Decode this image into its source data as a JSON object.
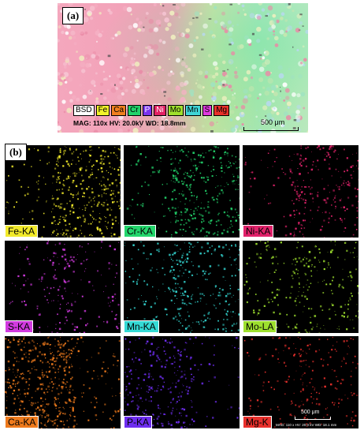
{
  "panel_a": {
    "label": "(a)",
    "legend": [
      {
        "text": "BSD",
        "bg": "#ffffff",
        "fg": "#000000"
      },
      {
        "text": "Fe",
        "bg": "#f2f22a",
        "fg": "#000000"
      },
      {
        "text": "Ca",
        "bg": "#f07f1e",
        "fg": "#000000"
      },
      {
        "text": "Cr",
        "bg": "#21d36a",
        "fg": "#000000"
      },
      {
        "text": "P",
        "bg": "#7a32f0",
        "fg": "#ffffff"
      },
      {
        "text": "Ni",
        "bg": "#e21f63",
        "fg": "#ffffff"
      },
      {
        "text": "Mo",
        "bg": "#9fe02c",
        "fg": "#000000"
      },
      {
        "text": "Mn",
        "bg": "#3fd6d6",
        "fg": "#000000"
      },
      {
        "text": "S",
        "bg": "#e03ae0",
        "fg": "#000000"
      },
      {
        "text": "Mg",
        "bg": "#e8302a",
        "fg": "#000000"
      }
    ],
    "acquisition": "MAG: 110x  HV: 20.0kV  WD: 18.8mm",
    "scale_bar": "500 μm"
  },
  "panel_b": {
    "label": "(b)",
    "maps": [
      {
        "label": "Fe-KA",
        "color": "#f2ea2a"
      },
      {
        "label": "Cr-KA",
        "color": "#23d66c"
      },
      {
        "label": "Ni-KA",
        "color": "#e0226a"
      },
      {
        "label": "S-KA",
        "color": "#d23ae0"
      },
      {
        "label": "Mn-KA",
        "color": "#34d9d4"
      },
      {
        "label": "Mo-LA",
        "color": "#9ee02e"
      },
      {
        "label": "Ca-KA",
        "color": "#ee7a1c"
      },
      {
        "label": "P-KA",
        "color": "#6e2ef0"
      },
      {
        "label": "Mg-K",
        "color": "#e8302c"
      }
    ],
    "scale_bar": "500 μm",
    "acquisition": "MAG: 110 x  HV: 20.0 kV  WD: 18.1 mm"
  }
}
